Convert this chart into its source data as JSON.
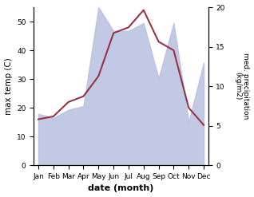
{
  "months": [
    "Jan",
    "Feb",
    "Mar",
    "Apr",
    "May",
    "Jun",
    "Jul",
    "Aug",
    "Sep",
    "Oct",
    "Nov",
    "Dec"
  ],
  "month_indices": [
    0,
    1,
    2,
    3,
    4,
    5,
    6,
    7,
    8,
    9,
    10,
    11
  ],
  "temperature": [
    16,
    17,
    22,
    24,
    31,
    46,
    48,
    54,
    43,
    40,
    20,
    14
  ],
  "precipitation": [
    6.5,
    6.0,
    7.0,
    7.5,
    20,
    17,
    17,
    18,
    11,
    18,
    5.5,
    13
  ],
  "temp_color": "#993344",
  "precip_fill_color": "#b8c0e0",
  "precip_line_color": "#b8c0e0",
  "xlabel": "date (month)",
  "ylabel_left": "max temp (C)",
  "ylabel_right": "med. precipitation\n(kg/m2)",
  "temp_ylim": [
    0,
    55
  ],
  "precip_ylim": [
    0,
    20
  ],
  "left_ticks": [
    0,
    10,
    20,
    30,
    40,
    50
  ],
  "right_ticks": [
    0,
    5,
    10,
    15,
    20
  ],
  "background_color": "#ffffff"
}
